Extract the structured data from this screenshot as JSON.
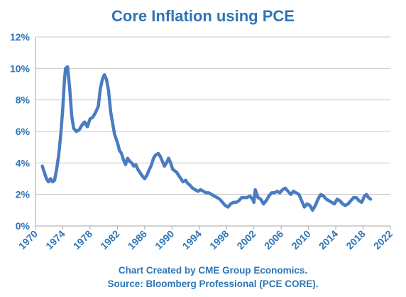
{
  "chart_data": {
    "type": "line",
    "title": "Core Inflation using PCE",
    "xlabel": "",
    "ylabel": "",
    "xlim": [
      1970,
      2022
    ],
    "ylim": [
      0,
      12
    ],
    "x_ticks": [
      1970,
      1974,
      1978,
      1982,
      1986,
      1990,
      1994,
      1998,
      2002,
      2006,
      2010,
      2014,
      2018,
      2022
    ],
    "x_tick_labels": [
      "1970",
      "1974",
      "1978",
      "1982",
      "1986",
      "1990",
      "1994",
      "1998",
      "2002",
      "2006",
      "2010",
      "2014",
      "2018",
      "2022"
    ],
    "y_ticks": [
      0,
      2,
      4,
      6,
      8,
      10,
      12
    ],
    "y_tick_labels": [
      "0%",
      "2%",
      "4%",
      "6%",
      "8%",
      "10%",
      "12%"
    ],
    "grid": true,
    "legend": "none",
    "series_color": "#4a7cc0",
    "text_color": "#2e75b6",
    "series": [
      {
        "x": [
          1971.0,
          1971.3,
          1971.6,
          1971.9,
          1972.2,
          1972.5,
          1972.8,
          1973.1,
          1973.4,
          1973.7,
          1974.0,
          1974.2,
          1974.4,
          1974.7,
          1975.0,
          1975.3,
          1975.6,
          1976.0,
          1976.4,
          1976.8,
          1977.2,
          1977.6,
          1978.0,
          1978.4,
          1978.8,
          1979.2,
          1979.5,
          1979.8,
          1980.1,
          1980.4,
          1980.7,
          1981.0,
          1981.3,
          1981.6,
          1982.0,
          1982.3,
          1982.6,
          1982.9,
          1983.2,
          1983.5,
          1983.8,
          1984.1,
          1984.4,
          1984.7,
          1985.0,
          1985.3,
          1985.6,
          1986.0,
          1986.3,
          1986.6,
          1987.0,
          1987.3,
          1987.6,
          1988.0,
          1988.3,
          1988.6,
          1988.9,
          1989.2,
          1989.5,
          1989.8,
          1990.1,
          1990.4,
          1990.7,
          1991.0,
          1991.3,
          1991.6,
          1992.0,
          1992.3,
          1992.6,
          1993.0,
          1993.4,
          1993.8,
          1994.2,
          1994.6,
          1995.0,
          1995.4,
          1995.8,
          1996.2,
          1996.6,
          1997.0,
          1997.4,
          1997.8,
          1998.2,
          1998.6,
          1999.0,
          1999.4,
          1999.8,
          2000.2,
          2000.6,
          2001.0,
          2001.4,
          2001.8,
          2002.0,
          2002.2,
          2002.6,
          2003.0,
          2003.4,
          2003.8,
          2004.2,
          2004.6,
          2005.0,
          2005.4,
          2005.8,
          2006.2,
          2006.6,
          2007.0,
          2007.4,
          2007.8,
          2008.2,
          2008.6,
          2009.0,
          2009.4,
          2009.8,
          2010.2,
          2010.6,
          2011.0,
          2011.4,
          2011.8,
          2012.2,
          2012.6,
          2013.0,
          2013.4,
          2013.8,
          2014.2,
          2014.6,
          2015.0,
          2015.4,
          2015.8,
          2016.2,
          2016.6,
          2017.0,
          2017.4,
          2017.8,
          2018.2,
          2018.5,
          2018.8,
          2019.1
        ],
        "values": [
          3.8,
          3.4,
          3.0,
          2.8,
          3.0,
          2.8,
          2.9,
          3.6,
          4.5,
          5.8,
          7.5,
          9.0,
          10.0,
          10.1,
          8.8,
          7.0,
          6.2,
          6.0,
          6.1,
          6.4,
          6.6,
          6.3,
          6.8,
          6.9,
          7.2,
          7.6,
          8.7,
          9.3,
          9.6,
          9.3,
          8.6,
          7.3,
          6.5,
          5.8,
          5.3,
          4.8,
          4.6,
          4.2,
          3.9,
          4.3,
          4.1,
          4.0,
          3.8,
          3.9,
          3.6,
          3.4,
          3.2,
          3.0,
          3.2,
          3.5,
          3.9,
          4.3,
          4.5,
          4.6,
          4.4,
          4.1,
          3.8,
          4.0,
          4.3,
          4.0,
          3.6,
          3.5,
          3.4,
          3.2,
          3.0,
          2.8,
          2.9,
          2.7,
          2.6,
          2.4,
          2.3,
          2.2,
          2.3,
          2.2,
          2.1,
          2.1,
          2.0,
          1.9,
          1.8,
          1.7,
          1.5,
          1.3,
          1.2,
          1.4,
          1.5,
          1.5,
          1.6,
          1.8,
          1.8,
          1.8,
          1.9,
          1.7,
          1.5,
          2.3,
          1.8,
          1.7,
          1.4,
          1.6,
          1.9,
          2.1,
          2.1,
          2.2,
          2.1,
          2.3,
          2.4,
          2.2,
          2.0,
          2.2,
          2.1,
          2.0,
          1.6,
          1.2,
          1.4,
          1.3,
          1.0,
          1.3,
          1.7,
          2.0,
          1.9,
          1.7,
          1.6,
          1.5,
          1.4,
          1.7,
          1.6,
          1.4,
          1.3,
          1.4,
          1.6,
          1.8,
          1.8,
          1.6,
          1.5,
          1.9,
          2.0,
          1.8,
          1.7
        ]
      }
    ],
    "source_lines": [
      "Chart Created by CME Group Economics.",
      "Source:  Bloomberg Professional (PCE CORE)."
    ]
  }
}
